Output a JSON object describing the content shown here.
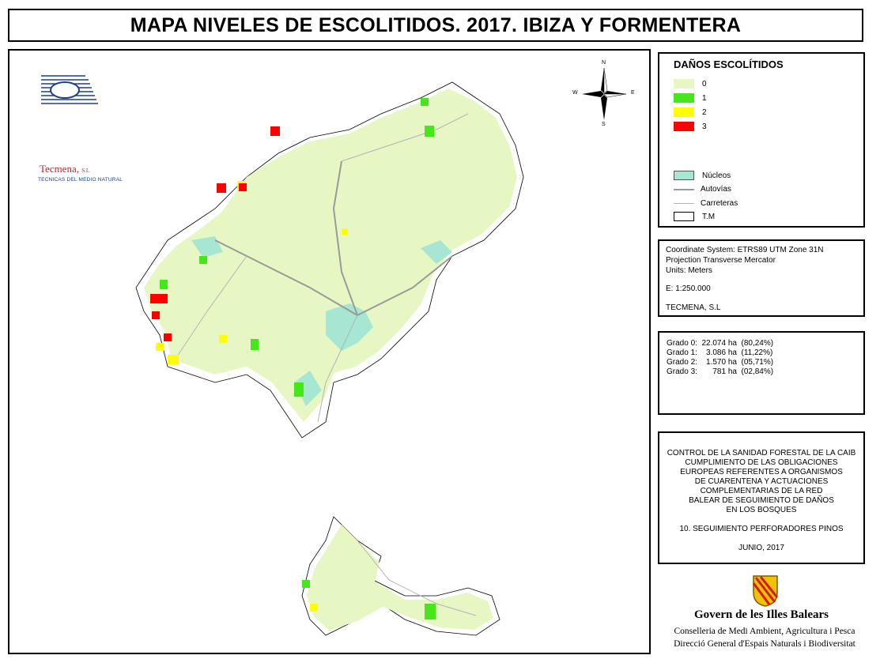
{
  "title": "MAPA NIVELES DE ESCOLITIDOS. 2017. IBIZA Y FORMENTERA",
  "colors": {
    "grade0": "#e6f7c4",
    "grade1": "#45e61a",
    "grade2": "#ffff00",
    "grade3": "#ff0000",
    "nucleos": "#a6e6d2",
    "autovias": "#9a9a9a",
    "carreteras": "#b4b4b4",
    "land": "#ffffff",
    "outline": "#000000"
  },
  "legend": {
    "title": "DAÑOS ESCOLÍTIDOS",
    "grades": [
      {
        "label": "0"
      },
      {
        "label": "1"
      },
      {
        "label": "2"
      },
      {
        "label": "3"
      }
    ],
    "nucleos": "Núcleos",
    "autovias": "Autovías",
    "carreteras": "Carreteras",
    "tm": "T.M"
  },
  "coordinate_info": {
    "line1": "Coordinate System: ETRS89 UTM Zone 31N",
    "line2": "Projection Transverse Mercator",
    "line3": "Units: Meters",
    "scale": "E: 1:250.000",
    "author": "TECMENA, S.L"
  },
  "stats": [
    {
      "text": "Grado 0:  22.074 ha  (80,24%)"
    },
    {
      "text": "Grado 1:    3.086 ha  (11,22%)"
    },
    {
      "text": "Grado 2:    1.570 ha  (05,71%)"
    },
    {
      "text": "Grado 3:       781 ha  (02,84%)"
    }
  ],
  "control": {
    "lines": [
      "CONTROL DE LA SANIDAD FORESTAL DE LA CAIB",
      "CUMPLIMIENTO DE LAS OBLIGACIONES",
      "EUROPEAS REFERENTES A ORGANISMOS",
      "DE CUARENTENA Y ACTUACIONES",
      "COMPLEMENTARIAS DE LA RED",
      "BALEAR DE SEGUIMIENTO DE DAÑOS",
      "EN LOS BOSQUES"
    ],
    "section": "10. SEGUIMIENTO PERFORADORES PINOS",
    "date": "JUNIO, 2017"
  },
  "government": {
    "name": "Govern de les Illes Balears",
    "conselleria": "Conselleria de Medi Ambient, Agricultura i Pesca",
    "direccio": "Direcció General d'Espais Naturals i Biodiversitat"
  },
  "company_logo": {
    "name": "Tecmena",
    "suffix": "S.L",
    "tagline": "TECNICAS DEL MEDIO NATURAL"
  },
  "compass": {
    "n": "N",
    "s": "S",
    "e": "E",
    "w": "W"
  }
}
